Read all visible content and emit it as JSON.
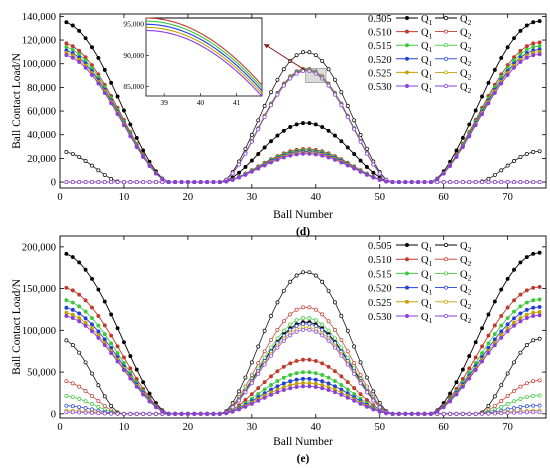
{
  "chart_data": [
    {
      "panel": "(d)",
      "type": "line",
      "xlabel": "Ball Number",
      "ylabel": "Ball Contact Load/N",
      "xlim": [
        0,
        76
      ],
      "ylim": [
        -5000,
        142000
      ],
      "xticks": [
        0,
        10,
        20,
        30,
        40,
        50,
        60,
        70
      ],
      "yticks": [
        0,
        20000,
        40000,
        60000,
        80000,
        100000,
        120000,
        140000
      ],
      "ytick_labels": [
        "0",
        "20,000",
        "40,000",
        "60,000",
        "80,000",
        "100,000",
        "120,000",
        "140,000"
      ],
      "legend_position": "top-right",
      "legend_q1": "Q1",
      "legend_q2": "Q2",
      "series": [
        {
          "name": "0.505",
          "color": "#000000",
          "q1_peak": 136000,
          "q1_second_peak": 50000,
          "q2_peak": 110000,
          "q2_edge": 26000
        },
        {
          "name": "0.510",
          "color": "#c0392b",
          "q1_peak": 118000,
          "q1_second_peak": 28000,
          "q2_peak": 96000,
          "q2_edge": 0
        },
        {
          "name": "0.515",
          "color": "#3cc83c",
          "q1_peak": 115000,
          "q1_second_peak": 27000,
          "q2_peak": 95500,
          "q2_edge": 0
        },
        {
          "name": "0.520",
          "color": "#1f3fd8",
          "q1_peak": 112000,
          "q1_second_peak": 26000,
          "q2_peak": 95000,
          "q2_edge": 0
        },
        {
          "name": "0.525",
          "color": "#c8a000",
          "q1_peak": 110000,
          "q1_second_peak": 25000,
          "q2_peak": 94500,
          "q2_edge": 0
        },
        {
          "name": "0.530",
          "color": "#8a3fd8",
          "q1_peak": 108000,
          "q1_second_peak": 24000,
          "q2_peak": 94000,
          "q2_edge": 0
        }
      ],
      "inset": {
        "xlim": [
          38.5,
          41.7
        ],
        "ylim": [
          83500,
          96000
        ],
        "xticks": [
          39,
          40,
          41
        ],
        "yticks": [
          85000,
          90000,
          95000
        ],
        "ytick_labels": [
          "85,000",
          "90,000",
          "95,000"
        ]
      }
    },
    {
      "panel": "(e)",
      "type": "line",
      "xlabel": "Ball Number",
      "ylabel": "Ball Contact Load/N",
      "xlim": [
        0,
        76
      ],
      "ylim": [
        -5000,
        213000
      ],
      "xticks": [
        0,
        10,
        20,
        30,
        40,
        50,
        60,
        70
      ],
      "yticks": [
        0,
        50000,
        100000,
        150000,
        200000
      ],
      "ytick_labels": [
        "0",
        "50,000",
        "100,000",
        "150,000",
        "200,000"
      ],
      "legend_position": "top-right",
      "legend_q1": "Q1",
      "legend_q2": "Q2",
      "series": [
        {
          "name": "0.505",
          "color": "#000000",
          "q1_peak": 193000,
          "q1_second_peak": 110000,
          "q2_peak": 170000,
          "q2_edge": 90000
        },
        {
          "name": "0.510",
          "color": "#c0392b",
          "q1_peak": 152000,
          "q1_second_peak": 65000,
          "q2_peak": 128000,
          "q2_edge": 40000
        },
        {
          "name": "0.515",
          "color": "#3cc83c",
          "q1_peak": 137000,
          "q1_second_peak": 50000,
          "q2_peak": 115000,
          "q2_edge": 22000
        },
        {
          "name": "0.520",
          "color": "#1f3fd8",
          "q1_peak": 128000,
          "q1_second_peak": 42000,
          "q2_peak": 108000,
          "q2_edge": 10000
        },
        {
          "name": "0.525",
          "color": "#c8a000",
          "q1_peak": 122000,
          "q1_second_peak": 37000,
          "q2_peak": 104000,
          "q2_edge": 4000
        },
        {
          "name": "0.530",
          "color": "#8a3fd8",
          "q1_peak": 118000,
          "q1_second_peak": 33000,
          "q2_peak": 101000,
          "q2_edge": 2000
        }
      ]
    }
  ]
}
